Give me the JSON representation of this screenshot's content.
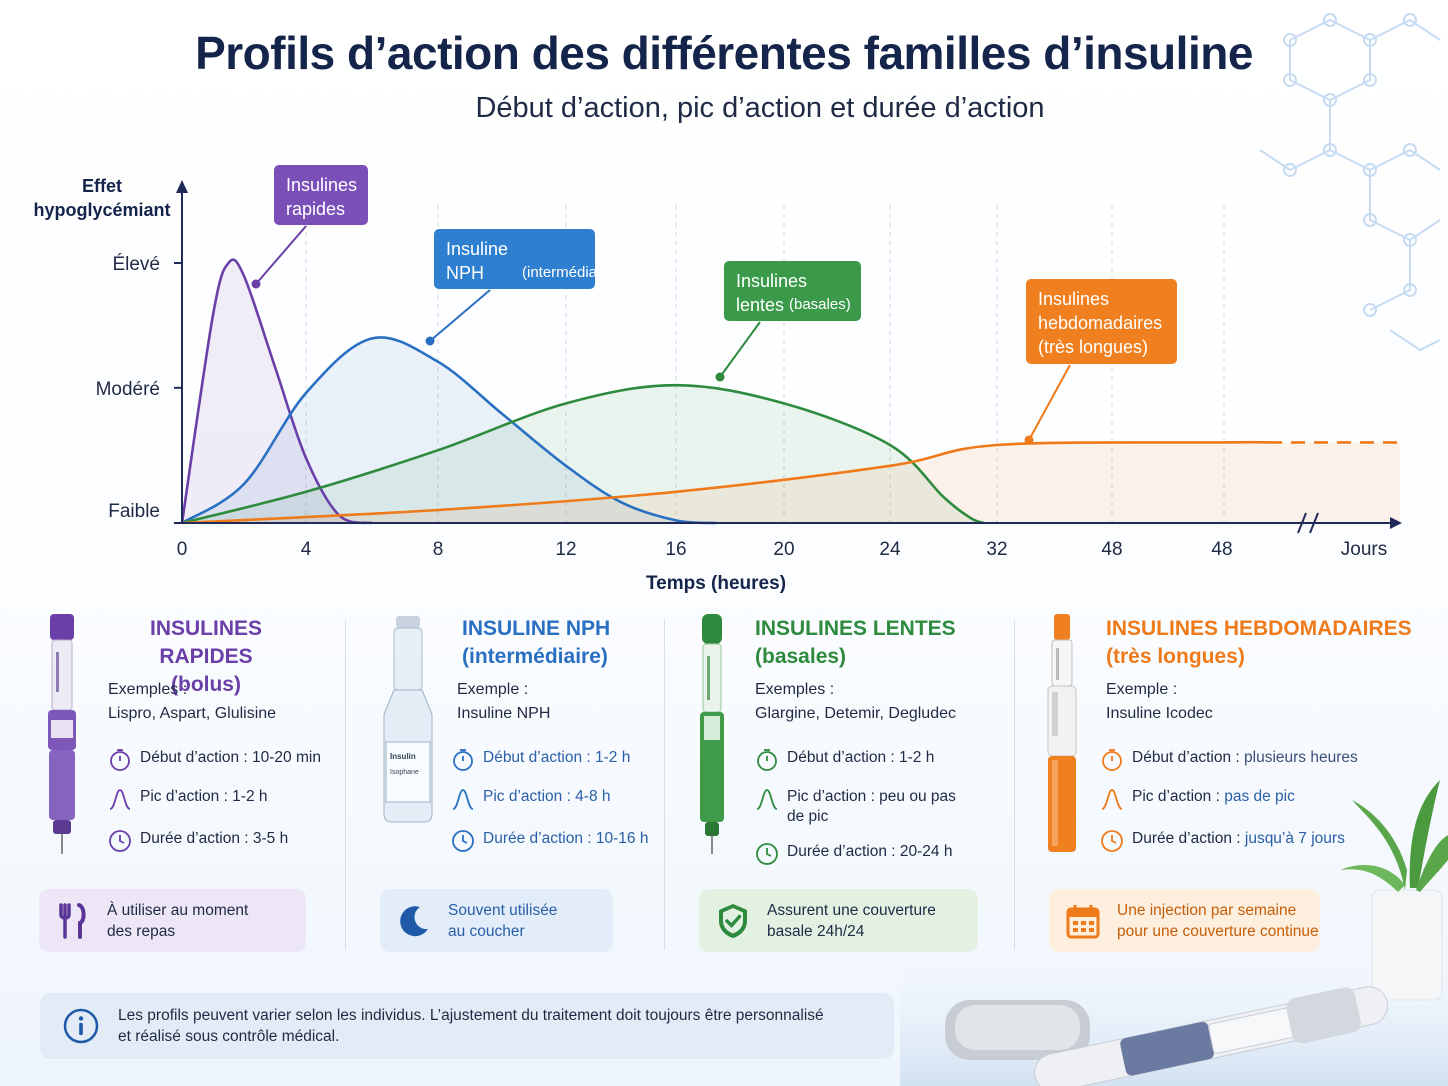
{
  "title": "Profils d’action des différentes familles d’insuline",
  "subtitle": "Début d’action, pic d’action et durée d’action",
  "colors": {
    "rapid": "#6a3fa8",
    "nph": "#2a70c2",
    "lente": "#2e8b3e",
    "hebdo": "#ef7a1a",
    "title": "#15244a"
  },
  "chart_data": {
    "type": "area",
    "ylabel": "Effet hypoglycémiant",
    "xlabel": "Temps (heures)",
    "y_ticks": [
      "Faible",
      "Modéré",
      "Élevé"
    ],
    "x_ticks": [
      "0",
      "4",
      "8",
      "12",
      "16",
      "20",
      "24",
      "32",
      "48",
      "48",
      "Jours"
    ],
    "axis_break": true,
    "grid": "vertical dashed",
    "series": [
      {
        "name": "Insulines rapides",
        "label_main": "Insulines rapides",
        "label_sub": "",
        "color": "#6a3fa8",
        "x": [
          0,
          1,
          1.5,
          2,
          3,
          4,
          5,
          6
        ],
        "y": [
          0,
          0.8,
          1.0,
          0.95,
          0.6,
          0.25,
          0.03,
          0
        ]
      },
      {
        "name": "Insuline NPH (intermédiaire)",
        "label_main": "Insuline NPH",
        "label_sub": "(intermédiaire)",
        "color": "#2a70c2",
        "x": [
          0,
          2,
          4,
          6,
          8,
          10,
          12,
          14,
          16,
          17.5
        ],
        "y": [
          0,
          0.15,
          0.5,
          0.71,
          0.62,
          0.42,
          0.22,
          0.08,
          0.01,
          0
        ]
      },
      {
        "name": "Insulines lentes (basales)",
        "label_main": "Insulines lentes",
        "label_sub": "(basales)",
        "color": "#2e8b3e",
        "x": [
          0,
          4,
          8,
          12,
          16,
          20,
          24,
          28,
          30,
          31
        ],
        "y": [
          0,
          0.12,
          0.28,
          0.46,
          0.53,
          0.46,
          0.3,
          0.1,
          0.02,
          0
        ]
      },
      {
        "name": "Insulines hebdomadaires (très longues)",
        "label_main": "Insulines hebdomadaires",
        "label_sub": "(très longues)",
        "color": "#ef7a1a",
        "x": [
          0,
          8,
          16,
          24,
          32,
          48
        ],
        "y": [
          0,
          0.05,
          0.12,
          0.22,
          0.3,
          0.31
        ],
        "continues": true
      }
    ]
  },
  "cards": [
    {
      "title1": "INSULINES RAPIDES",
      "title2": "(bolus)",
      "examples_label": "Exemples :",
      "examples": "Lispro, Aspart, Glulisine",
      "onset": "Début d’action : 10-20 min",
      "peak": "Pic d’action : 1-2 h",
      "duration": "Durée d’action : 3-5 h",
      "badge": [
        "À utiliser au moment",
        "des repas"
      ],
      "badge_icon": "fork-knife-icon"
    },
    {
      "title1": "INSULINE NPH",
      "title2": "(intermédiaire)",
      "examples_label": "Exemple :",
      "examples": "Insuline NPH",
      "onset": "Début d’action : 1-2 h",
      "peak": "Pic d’action : 4-8 h",
      "duration": "Durée d’action : 10-16 h",
      "vial_label": [
        "Insulin",
        "Isophane"
      ],
      "badge": [
        "Souvent utilisée",
        "au coucher"
      ],
      "badge_icon": "moon-icon"
    },
    {
      "title1": "INSULINES LENTES",
      "title2": "(basales)",
      "examples_label": "Exemples :",
      "examples": "Glargine, Detemir, Degludec",
      "onset": "Début d’action : 1-2 h",
      "peak_1": "Pic d’action : peu ou pas",
      "peak_2": "de pic",
      "duration": "Durée d’action : 20-24 h",
      "badge": [
        "Assurent une couverture",
        "basale 24h/24"
      ],
      "badge_icon": "shield-check-icon"
    },
    {
      "title1": "INSULINES HEBDOMADAIRES",
      "title2": "(très longues)",
      "examples_label": "Exemple :",
      "examples": "Insuline Icodec",
      "onset_k": "Début d’action :",
      "onset_v": "plusieurs heures",
      "peak_k": "Pic d’action :",
      "peak_v": "pas de pic",
      "duration_k": "Durée d’action :",
      "duration_v": "jusqu’à 7 jours",
      "badge": [
        "Une injection par semaine",
        "pour une couverture continue"
      ],
      "badge_icon": "calendar-icon"
    }
  ],
  "note": [
    "Les profils peuvent varier selon les individus. L’ajustement du traitement doit toujours être personnalisé",
    "et réalisé sous contrôle médical."
  ]
}
